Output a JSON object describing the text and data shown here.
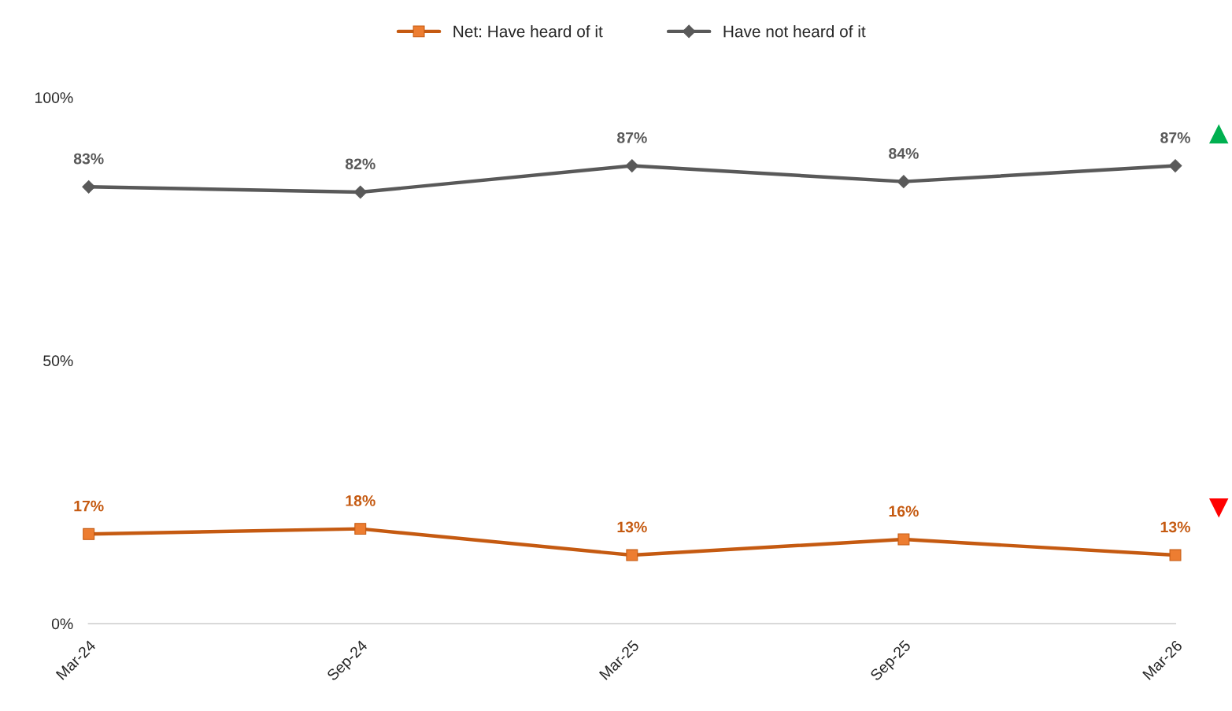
{
  "chart_data": {
    "type": "line",
    "categories": [
      "Mar-24",
      "Sep-24",
      "Mar-25",
      "Sep-25",
      "Mar-26"
    ],
    "series": [
      {
        "name": "Net: Have heard of it",
        "color": "#c55a11",
        "marker": "square",
        "values": [
          17,
          18,
          13,
          16,
          13
        ],
        "value_labels": [
          "17%",
          "18%",
          "13%",
          "16%",
          "13%"
        ]
      },
      {
        "name": "Have not heard of it",
        "color": "#595959",
        "marker": "diamond",
        "values": [
          83,
          82,
          87,
          84,
          87
        ],
        "value_labels": [
          "83%",
          "82%",
          "87%",
          "84%",
          "87%"
        ]
      }
    ],
    "ylim": [
      0,
      100
    ],
    "yticks": [
      {
        "value": 0,
        "label": "0%"
      },
      {
        "value": 50,
        "label": "50%"
      },
      {
        "value": 100,
        "label": "100%"
      }
    ],
    "grid": false,
    "legend": "top",
    "line_style": "solid"
  }
}
